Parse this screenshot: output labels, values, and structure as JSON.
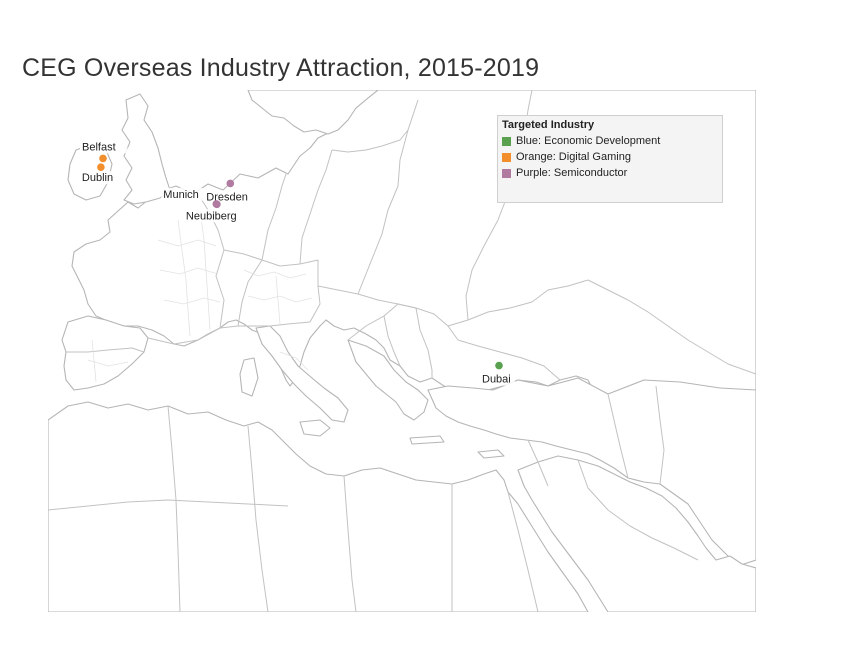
{
  "title": "CEG Overseas Industry Attraction, 2015-2019",
  "legend": {
    "title": "Targeted Industry",
    "items": [
      {
        "label": "Blue: Economic Development",
        "color": "#59a14f"
      },
      {
        "label": "Orange: Digital Gaming",
        "color": "#f28e2b"
      },
      {
        "label": "Purple: Semiconductor",
        "color": "#b07aa1"
      }
    ]
  },
  "locations": [
    {
      "name": "Belfast",
      "industry": "Digital Gaming",
      "color": "#f28e2b",
      "lat": 54.6,
      "lon": -5.93
    },
    {
      "name": "Dublin",
      "industry": "Digital Gaming",
      "color": "#f28e2b",
      "lat": 53.35,
      "lon": -6.26
    },
    {
      "name": "Dresden",
      "industry": "Semiconductor",
      "color": "#b07aa1",
      "lat": 51.05,
      "lon": 13.74
    },
    {
      "name": "Munich",
      "industry": "Semiconductor",
      "color": "#b07aa1",
      "lat": 48.14,
      "lon": 11.58
    },
    {
      "name": "Neubiberg",
      "industry": "Semiconductor",
      "color": "#b07aa1",
      "lat": 48.08,
      "lon": 11.67
    },
    {
      "name": "Dubai",
      "industry": "Economic Development",
      "color": "#59a14f",
      "lat": 25.2,
      "lon": 55.27
    }
  ]
}
